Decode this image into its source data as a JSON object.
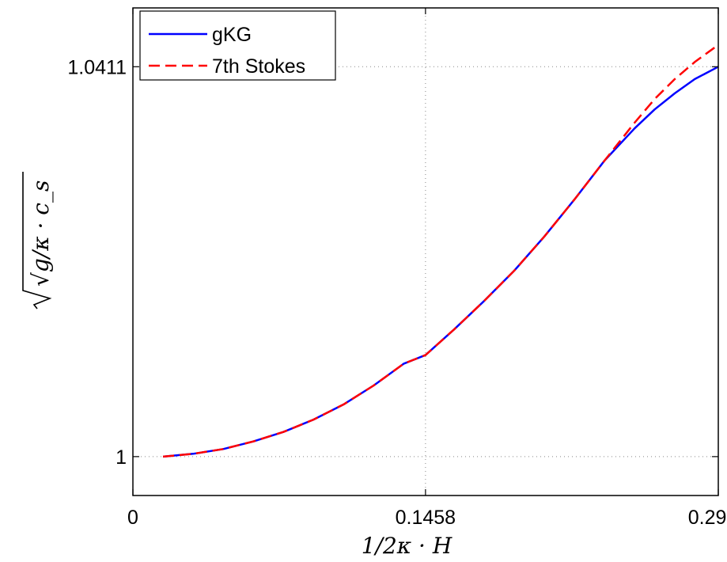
{
  "chart_data": {
    "type": "line",
    "title": "",
    "xlabel": "1/2κ · H",
    "ylabel": "√g/κ · c_s",
    "xlim": [
      0,
      0.2917
    ],
    "ylim": [
      0.9959,
      1.0473
    ],
    "xticks": [
      {
        "value": 0,
        "label": "0"
      },
      {
        "value": 0.1458,
        "label": "0.1458"
      },
      {
        "value": 0.2917,
        "label": "0.2917"
      }
    ],
    "yticks": [
      {
        "value": 1,
        "label": "1"
      },
      {
        "value": 1.0411,
        "label": "1.0411"
      }
    ],
    "grid": true,
    "legend_position": "top-left",
    "series": [
      {
        "name": "gKG",
        "color": "#0000ff",
        "dash": "solid",
        "points": [
          [
            0.015,
            1.0
          ],
          [
            0.03,
            1.0003
          ],
          [
            0.045,
            1.0008
          ],
          [
            0.06,
            1.0016
          ],
          [
            0.075,
            1.0026
          ],
          [
            0.09,
            1.0039
          ],
          [
            0.105,
            1.0055
          ],
          [
            0.12,
            1.0075
          ],
          [
            0.135,
            1.0098
          ],
          [
            0.1458,
            1.0107
          ],
          [
            0.16,
            1.0134
          ],
          [
            0.175,
            1.0164
          ],
          [
            0.19,
            1.0196
          ],
          [
            0.205,
            1.0232
          ],
          [
            0.22,
            1.0271
          ],
          [
            0.235,
            1.0312
          ],
          [
            0.25,
            1.0346
          ],
          [
            0.26,
            1.0366
          ],
          [
            0.27,
            1.0383
          ],
          [
            0.28,
            1.0398
          ],
          [
            0.2917,
            1.0411
          ]
        ]
      },
      {
        "name": "7th Stokes",
        "color": "#ff0000",
        "dash": "dashed",
        "points": [
          [
            0.015,
            1.0
          ],
          [
            0.03,
            1.0003
          ],
          [
            0.045,
            1.0008
          ],
          [
            0.06,
            1.0016
          ],
          [
            0.075,
            1.0026
          ],
          [
            0.09,
            1.0039
          ],
          [
            0.105,
            1.0055
          ],
          [
            0.12,
            1.0075
          ],
          [
            0.135,
            1.0098
          ],
          [
            0.1458,
            1.0107
          ],
          [
            0.16,
            1.0134
          ],
          [
            0.175,
            1.0164
          ],
          [
            0.19,
            1.0196
          ],
          [
            0.205,
            1.0232
          ],
          [
            0.22,
            1.0271
          ],
          [
            0.235,
            1.0312
          ],
          [
            0.25,
            1.0352
          ],
          [
            0.26,
            1.0377
          ],
          [
            0.27,
            1.0398
          ],
          [
            0.28,
            1.0416
          ],
          [
            0.2917,
            1.0434
          ]
        ]
      }
    ]
  }
}
